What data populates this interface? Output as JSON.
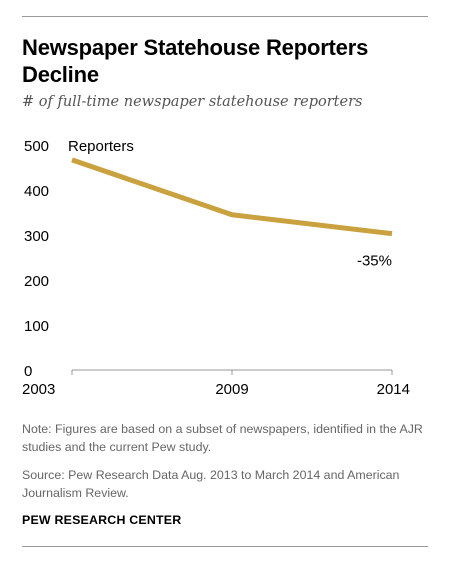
{
  "title": "Newspaper Statehouse Reporters Decline",
  "subtitle": "# of full-time newspaper statehouse reporters",
  "chart_data": {
    "type": "line",
    "x": [
      "2003",
      "2009",
      "2014"
    ],
    "series": [
      {
        "values": [
          467,
          345,
          303
        ]
      }
    ],
    "ylim": [
      0,
      500
    ],
    "yticks": [
      0,
      100,
      200,
      300,
      400,
      500
    ],
    "ylabel": "Reporters",
    "grid": false,
    "annotations": [
      {
        "text": "-35%",
        "x": "2014"
      }
    ],
    "colors": {
      "line": "#c9a23f",
      "axis": "#999999",
      "text": "#000000"
    }
  },
  "notes": {
    "note": "Note: Figures are based on a subset of newspapers, identified in the AJR studies and the current Pew study.",
    "source": "Source: Pew Research Data Aug. 2013 to March 2014 and American Journalism Review."
  },
  "brand": "PEW RESEARCH CENTER"
}
